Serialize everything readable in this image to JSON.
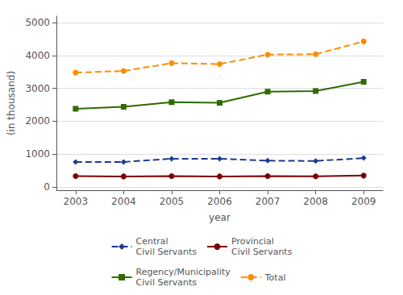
{
  "chart_data": {
    "type": "line",
    "xlabel": "year",
    "ylabel": "(in thousand)",
    "x": [
      2003,
      2004,
      2005,
      2006,
      2007,
      2008,
      2009
    ],
    "xlim": [
      2002.6,
      2009.4
    ],
    "xticks": [
      2003,
      2004,
      2005,
      2006,
      2007,
      2008,
      2009
    ],
    "ylim": [
      -100,
      5200
    ],
    "yticks": [
      0,
      1000,
      2000,
      3000,
      4000,
      5000
    ],
    "grid": true,
    "legend": "bottom",
    "series": [
      {
        "name": "Central\nCivil Servants",
        "color": "#1F3A8F",
        "marker": "diamond",
        "line_style": "dashed",
        "values": [
          760,
          760,
          860,
          860,
          800,
          790,
          880
        ]
      },
      {
        "name": "Provincial\nCivil Servants",
        "color": "#7B0000",
        "marker": "circle",
        "line_style": "solid",
        "values": [
          330,
          320,
          330,
          320,
          330,
          325,
          345
        ]
      },
      {
        "name": "Regency/Municipality\nCivil Servants",
        "color": "#2E6B00",
        "marker": "square",
        "line_style": "solid",
        "values": [
          2380,
          2440,
          2580,
          2560,
          2900,
          2920,
          3200
        ]
      },
      {
        "name": "Total",
        "color": "#FF8C00",
        "marker": "circle",
        "line_style": "dashed",
        "values": [
          3480,
          3530,
          3770,
          3740,
          4030,
          4040,
          4430
        ]
      }
    ]
  }
}
